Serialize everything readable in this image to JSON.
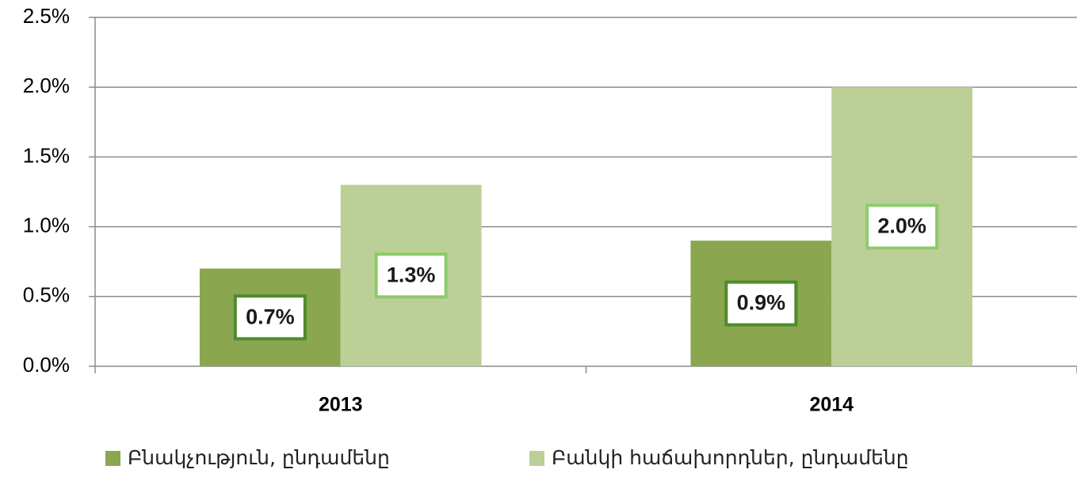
{
  "chart_data": {
    "type": "bar",
    "categories": [
      "2013",
      "2014"
    ],
    "series": [
      {
        "name": "Բնակչություն, ընդամենը",
        "color": "#8aa64f",
        "label_border_color": "#4f8b2c",
        "values": [
          0.7,
          0.9
        ],
        "value_labels": [
          "0.7%",
          "0.9%"
        ]
      },
      {
        "name": "Բանկի հաճախորդներ, ընդամենը",
        "color": "#bccf97",
        "label_border_color": "#8ccb6a",
        "values": [
          1.3,
          2.0
        ],
        "value_labels": [
          "1.3%",
          "2.0%"
        ]
      }
    ],
    "ylim": [
      0,
      2.5
    ],
    "yticks": [
      {
        "value": 0,
        "label": "0.0%"
      },
      {
        "value": 0.5,
        "label": "0.5%"
      },
      {
        "value": 1,
        "label": "1.0%"
      },
      {
        "value": 1.5,
        "label": "1.5%"
      },
      {
        "value": 2,
        "label": "2.0%"
      },
      {
        "value": 2.5,
        "label": "2.5%"
      }
    ],
    "grid": true,
    "legend": "bottom"
  }
}
